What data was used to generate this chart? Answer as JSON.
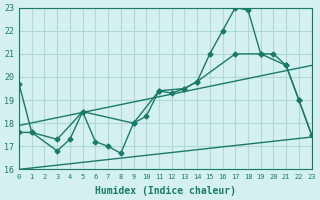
{
  "xlabel": "Humidex (Indice chaleur)",
  "ylabel": "",
  "bg_color": "#d4f0f0",
  "grid_color": "#b0d8d8",
  "line_color": "#1a7a6a",
  "xlim": [
    0,
    23
  ],
  "ylim": [
    16,
    23
  ],
  "xticks": [
    0,
    1,
    2,
    3,
    4,
    5,
    6,
    7,
    8,
    9,
    10,
    11,
    12,
    13,
    14,
    15,
    16,
    17,
    18,
    19,
    20,
    21,
    22,
    23
  ],
  "yticks": [
    16,
    17,
    18,
    19,
    20,
    21,
    22,
    23
  ],
  "series1_x": [
    0,
    1,
    3,
    4,
    5,
    6,
    7,
    8,
    9,
    10,
    11,
    12,
    13,
    14,
    15,
    16,
    17,
    18,
    19,
    20,
    21,
    22,
    23
  ],
  "series1_y": [
    19.7,
    17.6,
    16.8,
    17.3,
    18.5,
    17.2,
    17.0,
    16.7,
    18.0,
    18.3,
    19.4,
    19.3,
    19.5,
    19.8,
    21.0,
    22.0,
    23.0,
    22.9,
    21.0,
    21.0,
    20.5,
    19.0,
    17.5
  ],
  "series2_x": [
    0,
    1,
    3,
    5,
    9,
    11,
    13,
    14,
    17,
    19,
    21,
    22,
    23
  ],
  "series2_y": [
    17.6,
    17.6,
    17.3,
    18.5,
    18.0,
    19.4,
    19.5,
    19.8,
    21.0,
    21.0,
    20.5,
    19.0,
    17.5
  ],
  "trend1_x": [
    0,
    23
  ],
  "trend1_y": [
    17.9,
    20.5
  ],
  "trend2_x": [
    0,
    23
  ],
  "trend2_y": [
    16.0,
    17.4
  ]
}
